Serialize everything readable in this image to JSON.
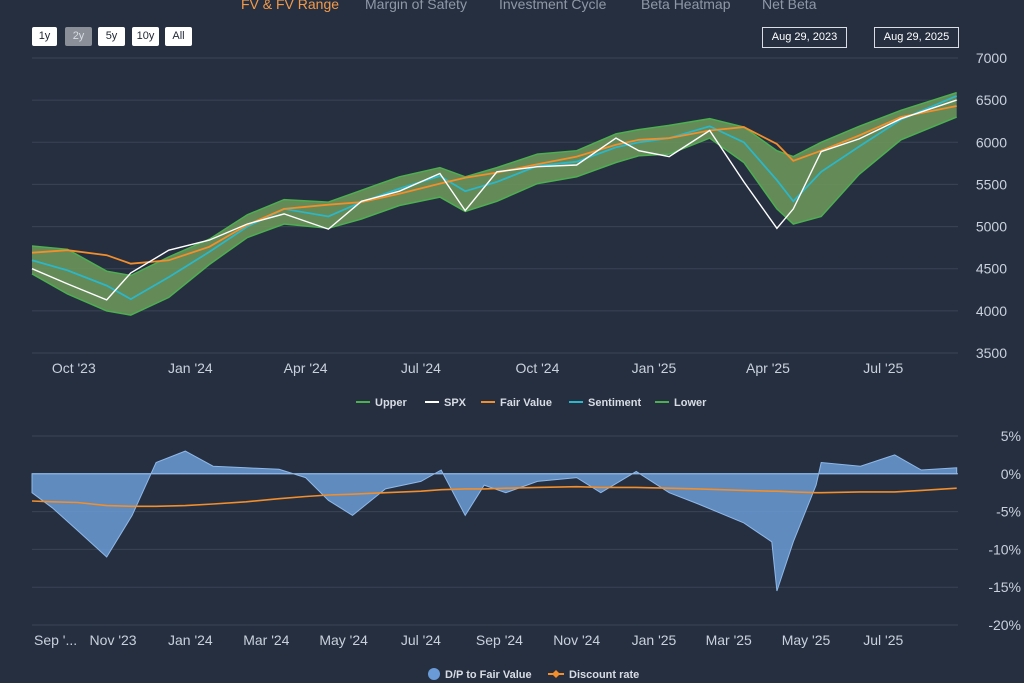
{
  "tabs": [
    {
      "label": "FV & FV Range",
      "active": true
    },
    {
      "label": "Margin of Safety",
      "active": false
    },
    {
      "label": "Investment Cycle",
      "active": false
    },
    {
      "label": "Beta Heatmap",
      "active": false
    },
    {
      "label": "Net Beta",
      "active": false
    }
  ],
  "range_buttons": [
    "1y",
    "2y",
    "5y",
    "10y",
    "All"
  ],
  "selected_range": "2y",
  "date_range": {
    "start": "Aug 29, 2023",
    "end": "Aug 29, 2025"
  },
  "colors": {
    "background": "#262f40",
    "band_fill": "#6f9a5c",
    "band_edge": "#4caf50",
    "spx": "#ffffff",
    "fair_value": "#f28e2b",
    "sentiment": "#2bb7c9",
    "dp_fill": "#6a9bd6",
    "discount_rate": "#f28e2b"
  },
  "chart_data": [
    {
      "type": "area",
      "name": "Price vs Fair Value",
      "x_start": "2023-08-29",
      "x_end": "2025-08-29",
      "x_tick_labels": [
        "Oct '23",
        "Jan '24",
        "Apr '24",
        "Jul '24",
        "Oct '24",
        "Jan '25",
        "Apr '25",
        "Jul '25"
      ],
      "y_ticks": [
        "7000",
        "6500",
        "6000",
        "5500",
        "5000",
        "4500",
        "4000",
        "3500"
      ],
      "ylim": [
        3500,
        7000
      ],
      "x": [
        "2023-08-29",
        "2023-09-26",
        "2023-10-27",
        "2023-11-15",
        "2023-12-15",
        "2024-01-16",
        "2024-02-15",
        "2024-03-15",
        "2024-04-19",
        "2024-05-15",
        "2024-06-14",
        "2024-07-16",
        "2024-08-05",
        "2024-08-30",
        "2024-10-01",
        "2024-11-01",
        "2024-12-02",
        "2024-12-20",
        "2025-01-13",
        "2025-02-14",
        "2025-03-13",
        "2025-04-08",
        "2025-04-21",
        "2025-05-13",
        "2025-06-12",
        "2025-07-15",
        "2025-08-28"
      ],
      "series": [
        {
          "name": "Upper",
          "values": [
            4770,
            4730,
            4470,
            4420,
            4640,
            4850,
            5140,
            5320,
            5290,
            5430,
            5590,
            5700,
            5590,
            5700,
            5860,
            5900,
            6100,
            6150,
            6200,
            6280,
            6180,
            5900,
            5830,
            6000,
            6190,
            6380,
            6590
          ]
        },
        {
          "name": "SPX",
          "values": [
            4500,
            4320,
            4130,
            4450,
            4720,
            4840,
            5030,
            5150,
            4970,
            5300,
            5420,
            5630,
            5190,
            5650,
            5710,
            5730,
            6050,
            5900,
            5830,
            6140,
            5530,
            4980,
            5210,
            5890,
            6040,
            6280,
            6500
          ]
        },
        {
          "name": "Fair Value",
          "values": [
            4690,
            4720,
            4660,
            4560,
            4600,
            4760,
            5020,
            5210,
            5260,
            5290,
            5390,
            5510,
            5580,
            5640,
            5740,
            5830,
            5970,
            6030,
            6050,
            6140,
            6180,
            5980,
            5780,
            5900,
            6080,
            6300,
            6430
          ]
        },
        {
          "name": "Sentiment",
          "values": [
            4600,
            4480,
            4300,
            4140,
            4400,
            4700,
            5000,
            5210,
            5120,
            5290,
            5450,
            5600,
            5420,
            5530,
            5720,
            5770,
            5940,
            6000,
            6050,
            6190,
            6000,
            5550,
            5300,
            5650,
            5950,
            6270,
            6550
          ]
        },
        {
          "name": "Lower",
          "values": [
            4440,
            4200,
            4000,
            3950,
            4160,
            4550,
            4870,
            5030,
            4980,
            5090,
            5250,
            5350,
            5180,
            5300,
            5510,
            5590,
            5760,
            5840,
            5860,
            6050,
            5760,
            5210,
            5030,
            5120,
            5620,
            6030,
            6300
          ]
        }
      ],
      "legend": [
        "Upper",
        "SPX",
        "Fair Value",
        "Sentiment",
        "Lower"
      ],
      "legend_position": "bottom",
      "grid": true
    },
    {
      "type": "area",
      "name": "D/P to Fair Value",
      "x_start": "2023-08-29",
      "x_end": "2025-08-29",
      "x_tick_labels": [
        "Sep '...",
        "Nov '23",
        "Jan '24",
        "Mar '24",
        "May '24",
        "Jul '24",
        "Sep '24",
        "Nov '24",
        "Jan '25",
        "Mar '25",
        "May '25",
        "Jul '25"
      ],
      "y_ticks": [
        "5%",
        "0%",
        "-5%",
        "-10%",
        "-15%",
        "-20%"
      ],
      "ylim": [
        -20,
        5
      ],
      "x": [
        "2023-08-29",
        "2023-09-14",
        "2023-10-04",
        "2023-10-27",
        "2023-11-16",
        "2023-12-05",
        "2023-12-28",
        "2024-01-19",
        "2024-02-14",
        "2024-03-11",
        "2024-04-01",
        "2024-04-19",
        "2024-05-08",
        "2024-06-03",
        "2024-07-01",
        "2024-07-17",
        "2024-08-05",
        "2024-08-20",
        "2024-09-06",
        "2024-10-01",
        "2024-11-01",
        "2024-11-20",
        "2024-12-18",
        "2025-01-13",
        "2025-02-05",
        "2025-03-13",
        "2025-04-04",
        "2025-04-08",
        "2025-04-21",
        "2025-05-09",
        "2025-05-13",
        "2025-06-13",
        "2025-07-10",
        "2025-07-31",
        "2025-08-28"
      ],
      "series": [
        {
          "name": "D/P to Fair Value",
          "values": [
            -2.5,
            -4.5,
            -7.5,
            -11.0,
            -5.5,
            1.5,
            3.0,
            1.0,
            0.8,
            0.6,
            -0.5,
            -3.5,
            -5.5,
            -2.0,
            -1.0,
            0.5,
            -5.5,
            -1.5,
            -2.5,
            -1.0,
            -0.5,
            -2.5,
            0.3,
            -2.5,
            -4.0,
            -6.5,
            -9.0,
            -15.5,
            -9.0,
            -1.5,
            1.5,
            1.0,
            2.5,
            0.5,
            0.8
          ]
        },
        {
          "name": "Discount rate",
          "values": [
            -3.6,
            -3.7,
            -3.8,
            -4.2,
            -4.3,
            -4.3,
            -4.2,
            -4.0,
            -3.7,
            -3.3,
            -3.0,
            -2.8,
            -2.7,
            -2.5,
            -2.3,
            -2.1,
            -2.0,
            -2.0,
            -1.9,
            -1.8,
            -1.7,
            -1.8,
            -1.8,
            -1.9,
            -2.0,
            -2.2,
            -2.3,
            -2.3,
            -2.4,
            -2.5,
            -2.5,
            -2.4,
            -2.4,
            -2.2,
            -1.9
          ]
        }
      ],
      "legend": [
        "D/P to Fair Value",
        "Discount rate"
      ],
      "legend_position": "bottom",
      "grid": true
    }
  ]
}
